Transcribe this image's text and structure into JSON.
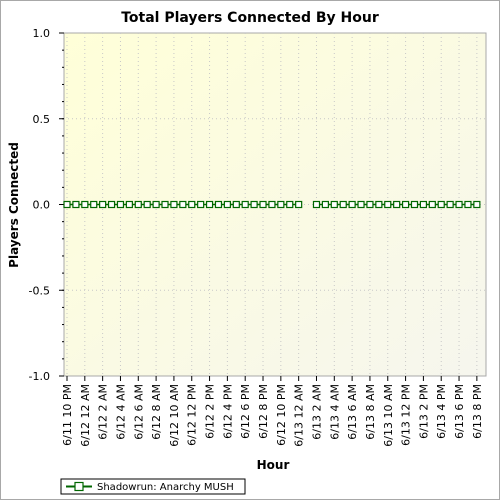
{
  "chart_data": {
    "type": "line",
    "title": "Total Players Connected By Hour",
    "xlabel": "Hour",
    "ylabel": "Players Connected",
    "ylim": [
      -1.0,
      1.0
    ],
    "yticks": [
      "1.0",
      "0.5",
      "0.0",
      "-0.5",
      "-1.0"
    ],
    "ytick_values": [
      1.0,
      0.5,
      0.0,
      -0.5,
      -1.0
    ],
    "x_tick_labels": [
      "6/11 10 PM",
      "6/12 12 AM",
      "6/12 2 AM",
      "6/12 4 AM",
      "6/12 6 AM",
      "6/12 8 AM",
      "6/12 10 AM",
      "6/12 12 PM",
      "6/12 2 PM",
      "6/12 4 PM",
      "6/12 6 PM",
      "6/12 8 PM",
      "6/12 10 PM",
      "6/13 12 AM",
      "6/13 2 AM",
      "6/13 4 AM",
      "6/13 6 AM",
      "6/13 8 AM",
      "6/13 10 AM",
      "6/13 12 PM",
      "6/13 2 PM",
      "6/13 4 PM",
      "6/13 6 PM",
      "6/13 8 PM"
    ],
    "grid": true,
    "legend_position": "bottom-left",
    "series": [
      {
        "name": "Shadowrun: Anarchy MUSH",
        "color": "#006600",
        "segments": [
          {
            "x_start": "6/11 10 PM",
            "hours": 27,
            "values": [
              0,
              0,
              0,
              0,
              0,
              0,
              0,
              0,
              0,
              0,
              0,
              0,
              0,
              0,
              0,
              0,
              0,
              0,
              0,
              0,
              0,
              0,
              0,
              0,
              0,
              0,
              0
            ]
          },
          {
            "x_start": "6/13 2 AM",
            "hours": 19,
            "values": [
              0,
              0,
              0,
              0,
              0,
              0,
              0,
              0,
              0,
              0,
              0,
              0,
              0,
              0,
              0,
              0,
              0,
              0,
              0
            ]
          }
        ]
      }
    ]
  }
}
